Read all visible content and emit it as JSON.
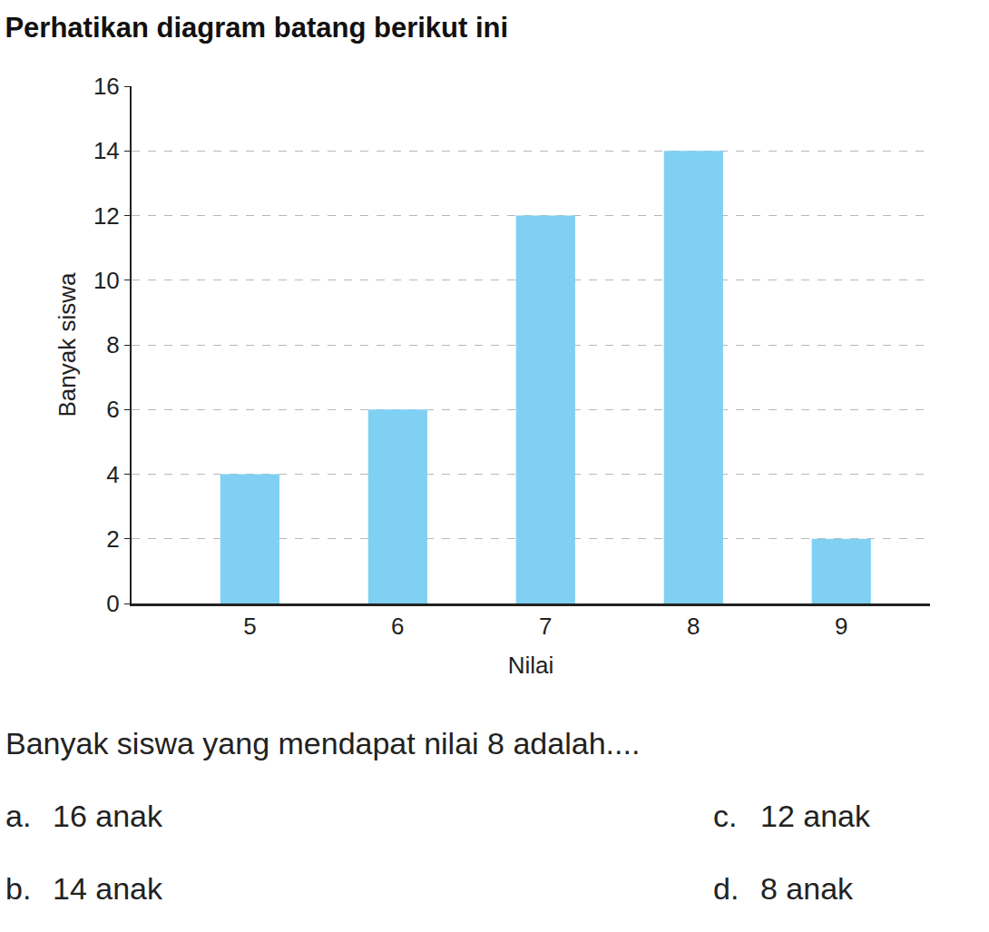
{
  "chart_data": {
    "type": "bar",
    "title": "Perhatikan diagram batang berikut ini",
    "x_label": "Nilai",
    "y_label": "Banyak siswa",
    "categories": [
      "5",
      "6",
      "7",
      "8",
      "9"
    ],
    "values": [
      4,
      6,
      12,
      14,
      2
    ],
    "color": "#7fd0f2",
    "ylim": [
      0,
      16
    ],
    "yticks": [
      0,
      2,
      4,
      6,
      8,
      10,
      12,
      14,
      16
    ],
    "grid": true
  },
  "question": "Banyak siswa yang mendapat nilai 8 adalah....",
  "options": [
    {
      "letter": "a.",
      "text": "16 anak"
    },
    {
      "letter": "b.",
      "text": "14 anak"
    },
    {
      "letter": "c.",
      "text": "12 anak"
    },
    {
      "letter": "d.",
      "text": "8 anak"
    }
  ]
}
